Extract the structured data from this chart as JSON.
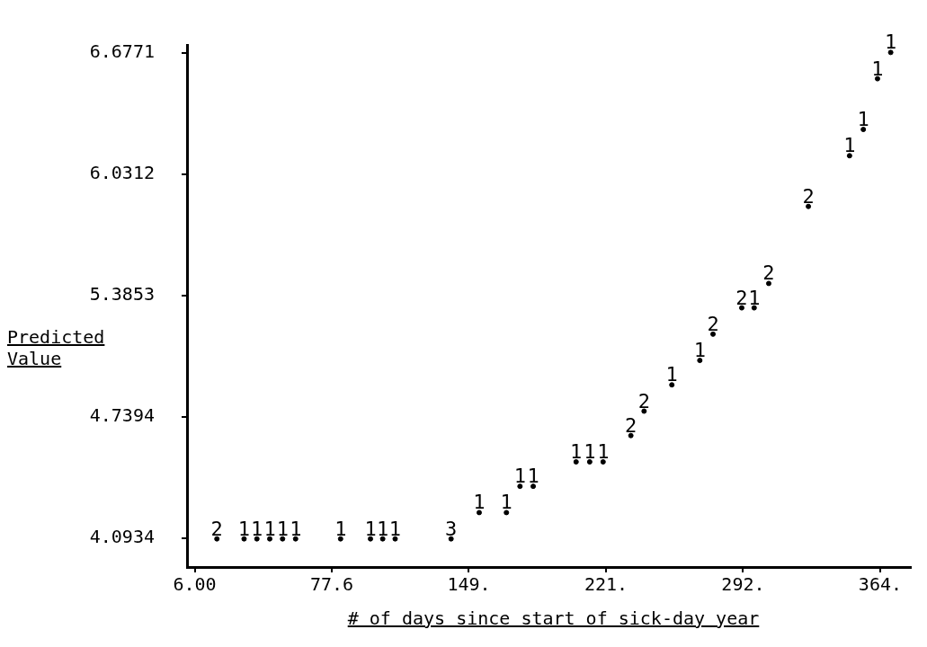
{
  "chart_data": {
    "type": "scatter",
    "xlabel": "# of days since start of sick-day year",
    "ylabel": "Predicted Value",
    "marker": "circle",
    "xlim": [
      2,
      380
    ],
    "xticks": [
      {
        "value": 6,
        "label": "6.00"
      },
      77.6,
      {
        "value": 149.2,
        "label": "149."
      },
      {
        "value": 220.8,
        "label": "221."
      },
      {
        "value": 292.4,
        "label": "292."
      },
      {
        "value": 364,
        "label": "364."
      }
    ],
    "ylim": [
      3.94,
      6.72
    ],
    "yticks": [
      4.0934,
      4.7394,
      5.3853,
      6.0312,
      6.6771
    ],
    "series": [
      {
        "color": "#000000",
        "x": [
          17.6,
          31.8,
          38.5,
          45.2,
          51.9,
          58.7,
          82.2,
          97.8,
          104.2,
          110.7,
          139.9,
          154.6,
          168.8,
          175.9,
          182.8,
          205.2,
          212.3,
          219.3,
          233.8,
          240.7,
          255.2,
          269.8,
          276.7,
          291.7,
          298.2,
          305.8,
          326.5,
          348,
          355.2,
          362.6,
          369.5
        ],
        "values": [
          4.09,
          4.09,
          4.09,
          4.09,
          4.09,
          4.09,
          4.09,
          4.09,
          4.09,
          4.09,
          4.09,
          4.23,
          4.23,
          4.37,
          4.37,
          4.5,
          4.5,
          4.5,
          4.64,
          4.77,
          4.91,
          5.04,
          5.18,
          5.32,
          5.32,
          5.45,
          5.86,
          6.13,
          6.27,
          6.54,
          6.68
        ]
      }
    ],
    "annotations": [
      {
        "text": "2",
        "x": 17.6,
        "y": 4.09
      },
      {
        "text": "1",
        "x": 31.8,
        "y": 4.09
      },
      {
        "text": "1",
        "x": 38.5,
        "y": 4.09
      },
      {
        "text": "1",
        "x": 45.2,
        "y": 4.09
      },
      {
        "text": "1",
        "x": 51.9,
        "y": 4.09
      },
      {
        "text": "1",
        "x": 58.7,
        "y": 4.09
      },
      {
        "text": "1",
        "x": 82.2,
        "y": 4.09
      },
      {
        "text": "1",
        "x": 97.8,
        "y": 4.09
      },
      {
        "text": "1",
        "x": 104.2,
        "y": 4.09
      },
      {
        "text": "1",
        "x": 110.7,
        "y": 4.09
      },
      {
        "text": "3",
        "x": 139.9,
        "y": 4.09
      },
      {
        "text": "1",
        "x": 154.6,
        "y": 4.23
      },
      {
        "text": "1",
        "x": 168.8,
        "y": 4.23
      },
      {
        "text": "1",
        "x": 175.9,
        "y": 4.37
      },
      {
        "text": "1",
        "x": 182.8,
        "y": 4.37
      },
      {
        "text": "1",
        "x": 205.2,
        "y": 4.5
      },
      {
        "text": "1",
        "x": 212.3,
        "y": 4.5
      },
      {
        "text": "1",
        "x": 219.3,
        "y": 4.5
      },
      {
        "text": "2",
        "x": 233.8,
        "y": 4.64
      },
      {
        "text": "2",
        "x": 240.7,
        "y": 4.77
      },
      {
        "text": "1",
        "x": 255.2,
        "y": 4.91
      },
      {
        "text": "1",
        "x": 269.8,
        "y": 5.04
      },
      {
        "text": "2",
        "x": 276.7,
        "y": 5.18
      },
      {
        "text": "2",
        "x": 291.7,
        "y": 5.32
      },
      {
        "text": "1",
        "x": 298.2,
        "y": 5.32
      },
      {
        "text": "2",
        "x": 305.8,
        "y": 5.45
      },
      {
        "text": "2",
        "x": 326.5,
        "y": 5.86
      },
      {
        "text": "1",
        "x": 348,
        "y": 6.13
      },
      {
        "text": "1",
        "x": 355.2,
        "y": 6.27
      },
      {
        "text": "1",
        "x": 362.6,
        "y": 6.54
      },
      {
        "text": "1",
        "x": 369.5,
        "y": 6.68
      }
    ]
  }
}
